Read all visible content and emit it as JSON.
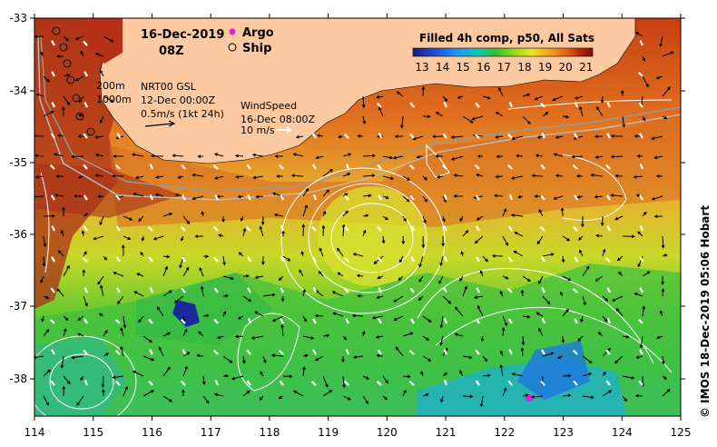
{
  "header": {
    "date": "16-Dec-2019",
    "time": "08Z"
  },
  "legend": {
    "argo_label": "Argo",
    "ship_label": "Ship"
  },
  "colorbar": {
    "title": "Filled 4h comp, p50, All Sats",
    "ticks": [
      "13",
      "14",
      "15",
      "16",
      "17",
      "18",
      "19",
      "20",
      "21"
    ],
    "colors": [
      "#1a1a8a",
      "#1f4fd0",
      "#1e90ff",
      "#10c8c0",
      "#30c030",
      "#90d820",
      "#e8e820",
      "#f0a020",
      "#e06010",
      "#b02010",
      "#801010"
    ]
  },
  "bathymetry": {
    "label_200": "200m",
    "label_1000": "1000m"
  },
  "current": {
    "product": "NRT00 GSL",
    "time": "12-Dec 00:00Z",
    "scale": "0.5m/s (1kt 24h)"
  },
  "wind": {
    "title": "WindSpeed",
    "time": "16-Dec 08:00Z",
    "scale": "10 m/s"
  },
  "x_axis": {
    "ticks": [
      "114",
      "115",
      "116",
      "117",
      "118",
      "119",
      "120",
      "121",
      "122",
      "123",
      "124",
      "125"
    ]
  },
  "y_axis": {
    "ticks": [
      "-33",
      "-34",
      "-35",
      "-36",
      "-37",
      "-38"
    ]
  },
  "credit": "© IMOS 18-Dec-2019 05:06 Hobart",
  "colors": {
    "land": "#fdc9a0",
    "argo": "#e020e0",
    "contour": "#ffffff"
  }
}
